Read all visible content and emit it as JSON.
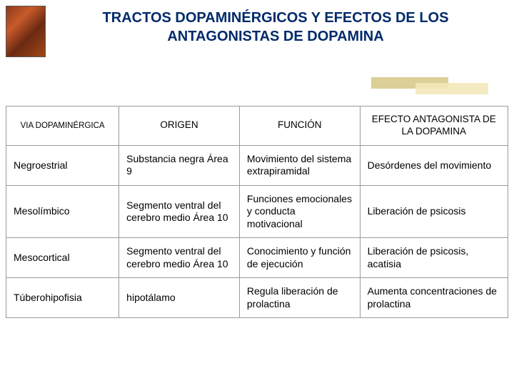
{
  "title_line1": "TRACTOS DOPAMINÉRGICOS Y EFECTOS DE LOS",
  "title_line2": "ANTAGONISTAS DE DOPAMINA",
  "colors": {
    "title": "#002a6a",
    "border": "#9a9a9a",
    "decor_dark": "#dccf98",
    "decor_light": "#f2e7b7",
    "background": "#ffffff"
  },
  "fonts": {
    "title_size": 20,
    "header_size": 13.5,
    "header_first_size": 11.5,
    "cell_size": 14
  },
  "table": {
    "headers": {
      "h1": "VIA DOPAMINÉRGICA",
      "h2": "ORIGEN",
      "h3": "FUNCIÓN",
      "h4": "EFECTO ANTAGONISTA DE LA DOPAMINA"
    },
    "rows": [
      {
        "via": "Negroestrial",
        "origen": "Substancia negra Área 9",
        "funcion": "Movimiento del sistema extrapiramidal",
        "efecto": "Desórdenes del movimiento"
      },
      {
        "via": "Mesolímbico",
        "origen": "Segmento ventral del cerebro medio Área 10",
        "funcion": "Funciones emocionales y conducta motivacional",
        "efecto": "Liberación de psicosis"
      },
      {
        "via": "Mesocortical",
        "origen": "Segmento ventral del cerebro medio Área 10",
        "funcion": "Conocimiento y función de ejecución",
        "efecto": "Liberación de psicosis, acatisia"
      },
      {
        "via": "Túberohipofisia",
        "origen": "hipotálamo",
        "funcion": "Regula liberación de prolactina",
        "efecto": "Aumenta concentraciones de prolactina"
      }
    ]
  }
}
